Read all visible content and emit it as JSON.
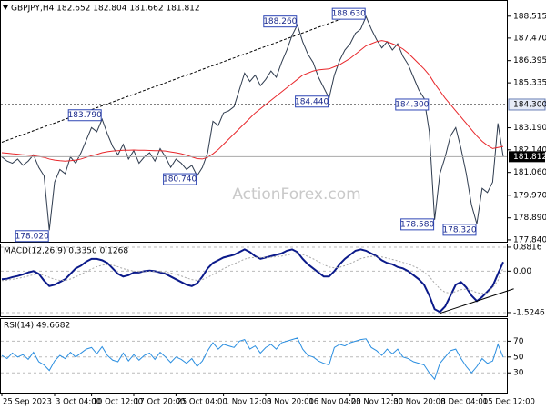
{
  "chart_data": [
    {
      "type": "line",
      "title": "GBPJPY,H4 182.652 182.804 181.662 181.812",
      "series": [
        {
          "color": "#2e3b4e",
          "values": [
            181.8,
            181.6,
            181.5,
            181.7,
            181.4,
            181.6,
            181.9,
            181.3,
            180.9,
            178.3,
            180.6,
            181.2,
            181.0,
            181.8,
            181.5,
            182.0,
            182.6,
            183.2,
            183.0,
            183.6,
            182.9,
            182.3,
            181.9,
            182.4,
            181.7,
            182.1,
            181.5,
            181.8,
            182.0,
            181.6,
            182.2,
            181.8,
            181.3,
            181.7,
            181.5,
            181.2,
            181.4,
            180.9,
            181.3,
            182.0,
            183.5,
            183.3,
            183.9,
            184.0,
            184.2,
            185.0,
            185.8,
            185.4,
            185.7,
            185.2,
            185.5,
            185.9,
            185.6,
            186.3,
            186.9,
            187.6,
            188.1,
            187.3,
            186.7,
            186.3,
            185.6,
            185.1,
            184.6,
            185.7,
            186.4,
            186.9,
            187.2,
            187.7,
            187.9,
            188.5,
            187.9,
            187.4,
            187.0,
            187.3,
            186.9,
            187.2,
            186.6,
            186.2,
            185.6,
            185.0,
            184.6,
            183.0,
            178.8,
            181.0,
            181.8,
            182.8,
            183.2,
            182.2,
            181.0,
            179.5,
            178.6,
            180.3,
            180.1,
            180.6,
            183.4,
            181.812
          ]
        },
        {
          "color": "#e8262a",
          "values": [
            182.0,
            181.98,
            181.95,
            181.93,
            181.9,
            181.88,
            181.86,
            181.82,
            181.78,
            181.7,
            181.65,
            181.62,
            181.6,
            181.62,
            181.65,
            181.7,
            181.78,
            181.86,
            181.92,
            182.0,
            182.05,
            182.08,
            182.1,
            182.12,
            182.12,
            182.13,
            182.12,
            182.12,
            182.11,
            182.1,
            182.1,
            182.08,
            182.04,
            182.0,
            181.95,
            181.88,
            181.8,
            181.72,
            181.7,
            181.78,
            181.95,
            182.15,
            182.4,
            182.65,
            182.9,
            183.15,
            183.4,
            183.65,
            183.9,
            184.1,
            184.3,
            184.5,
            184.7,
            184.9,
            185.1,
            185.3,
            185.5,
            185.7,
            185.8,
            185.9,
            185.95,
            185.98,
            186.0,
            186.1,
            186.2,
            186.35,
            186.5,
            186.7,
            186.9,
            187.1,
            187.2,
            187.3,
            187.35,
            187.3,
            187.2,
            187.1,
            186.95,
            186.75,
            186.5,
            186.25,
            186.0,
            185.7,
            185.3,
            184.95,
            184.6,
            184.3,
            184.0,
            183.7,
            183.4,
            183.1,
            182.8,
            182.55,
            182.35,
            182.2,
            182.25,
            182.3
          ]
        }
      ],
      "ylim": [
        177.75,
        189.2
      ],
      "yticks": [
        188.515,
        {
          "value": 187.47,
          "label": "187.470"
        },
        186.395,
        185.335,
        {
          "value": 183.19,
          "label": "183.190"
        },
        {
          "value": 182.14,
          "label": "182.140"
        },
        {
          "value": 181.06,
          "label": "181.060"
        },
        {
          "value": 179.97,
          "label": "179.970"
        },
        {
          "value": 178.89,
          "label": "178.890"
        },
        {
          "value": 177.84,
          "label": "177.840"
        }
      ],
      "hline": {
        "value": 184.3,
        "label": "184.300"
      },
      "last_price": 181.812,
      "trendline": {
        "x": [
          0,
          67
        ],
        "values": [
          182.5,
          188.63
        ]
      },
      "annotations": [
        {
          "x": 9,
          "value": 178.02,
          "label": "178.020"
        },
        {
          "x": 19,
          "value": 183.79,
          "label": "183.790"
        },
        {
          "x": 37,
          "value": 180.74,
          "label": "180.740"
        },
        {
          "x": 56,
          "value": 188.26,
          "label": "188.260"
        },
        {
          "x": 62,
          "value": 184.44,
          "label": "184.440"
        },
        {
          "x": 69,
          "value": 188.63,
          "label": "188.630"
        },
        {
          "x": 81,
          "value": 184.3,
          "label": "184.300"
        },
        {
          "x": 82,
          "value": 178.58,
          "label": "178.580"
        },
        {
          "x": 90,
          "value": 178.32,
          "label": "178.320"
        }
      ],
      "watermark": "ActionForex.com"
    },
    {
      "type": "line",
      "title": "MACD(12,26,9) 0.3350 0.1268",
      "series": [
        {
          "color": "#0b1a8a",
          "values": [
            -0.3,
            -0.28,
            -0.22,
            -0.18,
            -0.12,
            -0.05,
            0.0,
            -0.1,
            -0.35,
            -0.55,
            -0.5,
            -0.4,
            -0.3,
            -0.1,
            0.1,
            0.2,
            0.35,
            0.45,
            0.45,
            0.4,
            0.3,
            0.1,
            -0.1,
            -0.2,
            -0.15,
            -0.05,
            -0.05,
            0.0,
            0.02,
            0.0,
            -0.05,
            -0.1,
            -0.2,
            -0.3,
            -0.4,
            -0.5,
            -0.55,
            -0.45,
            -0.2,
            0.1,
            0.3,
            0.4,
            0.5,
            0.55,
            0.6,
            0.7,
            0.8,
            0.7,
            0.55,
            0.45,
            0.5,
            0.55,
            0.6,
            0.65,
            0.75,
            0.8,
            0.7,
            0.45,
            0.25,
            0.1,
            -0.05,
            -0.2,
            -0.2,
            0.0,
            0.25,
            0.45,
            0.6,
            0.75,
            0.8,
            0.75,
            0.65,
            0.55,
            0.4,
            0.3,
            0.25,
            0.15,
            0.1,
            0.0,
            -0.15,
            -0.3,
            -0.5,
            -0.9,
            -1.4,
            -1.5,
            -1.3,
            -0.9,
            -0.5,
            -0.4,
            -0.6,
            -0.9,
            -1.1,
            -0.95,
            -0.75,
            -0.55,
            -0.1,
            0.335
          ]
        },
        {
          "color": "#a8a8a8",
          "style": "dotted",
          "values": [
            -0.35,
            -0.33,
            -0.3,
            -0.27,
            -0.23,
            -0.18,
            -0.13,
            -0.11,
            -0.15,
            -0.23,
            -0.3,
            -0.34,
            -0.34,
            -0.29,
            -0.21,
            -0.12,
            -0.02,
            0.08,
            0.16,
            0.22,
            0.24,
            0.22,
            0.16,
            0.09,
            0.04,
            0.0,
            -0.02,
            -0.02,
            -0.01,
            -0.01,
            -0.02,
            -0.04,
            -0.07,
            -0.12,
            -0.18,
            -0.25,
            -0.31,
            -0.34,
            -0.31,
            -0.23,
            -0.12,
            -0.02,
            0.09,
            0.18,
            0.27,
            0.35,
            0.44,
            0.49,
            0.5,
            0.5,
            0.5,
            0.51,
            0.53,
            0.55,
            0.59,
            0.63,
            0.65,
            0.61,
            0.54,
            0.45,
            0.35,
            0.24,
            0.15,
            0.12,
            0.14,
            0.2,
            0.28,
            0.37,
            0.46,
            0.51,
            0.54,
            0.54,
            0.52,
            0.48,
            0.43,
            0.38,
            0.32,
            0.26,
            0.18,
            0.09,
            -0.03,
            -0.2,
            -0.44,
            -0.65,
            -0.78,
            -0.81,
            -0.75,
            -0.68,
            -0.66,
            -0.71,
            -0.79,
            -0.82,
            -0.81,
            -0.6,
            -0.35,
            0.1268
          ]
        }
      ],
      "ylim": [
        -1.66,
        0.98
      ],
      "yticks": [
        0.8816,
        {
          "value": 0,
          "label": "0.00"
        },
        -1.5246
      ],
      "grid": true,
      "trendline": {
        "x": [
          83,
          97
        ],
        "values": [
          -1.55,
          -0.65
        ]
      }
    },
    {
      "type": "line",
      "title": "RSI(14) 49.6682",
      "categories": [
        "25 Sep 2023",
        null,
        null,
        null,
        null,
        null,
        null,
        null,
        null,
        null,
        "3 Oct 04:00",
        null,
        null,
        null,
        null,
        null,
        null,
        "10 Oct 12:00",
        null,
        null,
        null,
        null,
        null,
        null,
        null,
        "17 Oct 20:00",
        null,
        null,
        null,
        null,
        null,
        null,
        null,
        "25 Oct 04:00",
        null,
        null,
        null,
        null,
        null,
        null,
        null,
        null,
        "1 Nov 12:00",
        null,
        null,
        null,
        null,
        null,
        null,
        null,
        "8 Nov 20:00",
        null,
        null,
        null,
        null,
        null,
        null,
        null,
        "16 Nov 04:00",
        null,
        null,
        null,
        null,
        null,
        null,
        null,
        "23 Nov 12:00",
        null,
        null,
        null,
        null,
        null,
        null,
        null,
        "30 Nov 20:00",
        null,
        null,
        null,
        null,
        null,
        null,
        null,
        null,
        "8 Dec 04:00",
        null,
        null,
        null,
        null,
        null,
        null,
        null,
        "15 Dec 12:00",
        null,
        null,
        null,
        null
      ],
      "series": [
        {
          "color": "#2a8ee0",
          "values": [
            52,
            48,
            55,
            50,
            53,
            47,
            56,
            44,
            40,
            33,
            45,
            52,
            48,
            56,
            50,
            55,
            60,
            62,
            54,
            63,
            52,
            46,
            44,
            55,
            45,
            53,
            46,
            52,
            55,
            47,
            56,
            50,
            43,
            50,
            47,
            42,
            48,
            38,
            45,
            58,
            68,
            60,
            66,
            64,
            62,
            70,
            72,
            60,
            64,
            55,
            62,
            66,
            60,
            68,
            70,
            72,
            74,
            60,
            52,
            50,
            45,
            42,
            40,
            62,
            66,
            64,
            68,
            70,
            72,
            73,
            62,
            58,
            52,
            60,
            54,
            60,
            50,
            48,
            44,
            42,
            40,
            30,
            22,
            42,
            50,
            58,
            60,
            48,
            38,
            30,
            38,
            48,
            42,
            45,
            66,
            49.67
          ]
        }
      ],
      "ylim": [
        5,
        98
      ],
      "yticks": [
        70,
        50,
        30
      ],
      "grid": true
    }
  ]
}
